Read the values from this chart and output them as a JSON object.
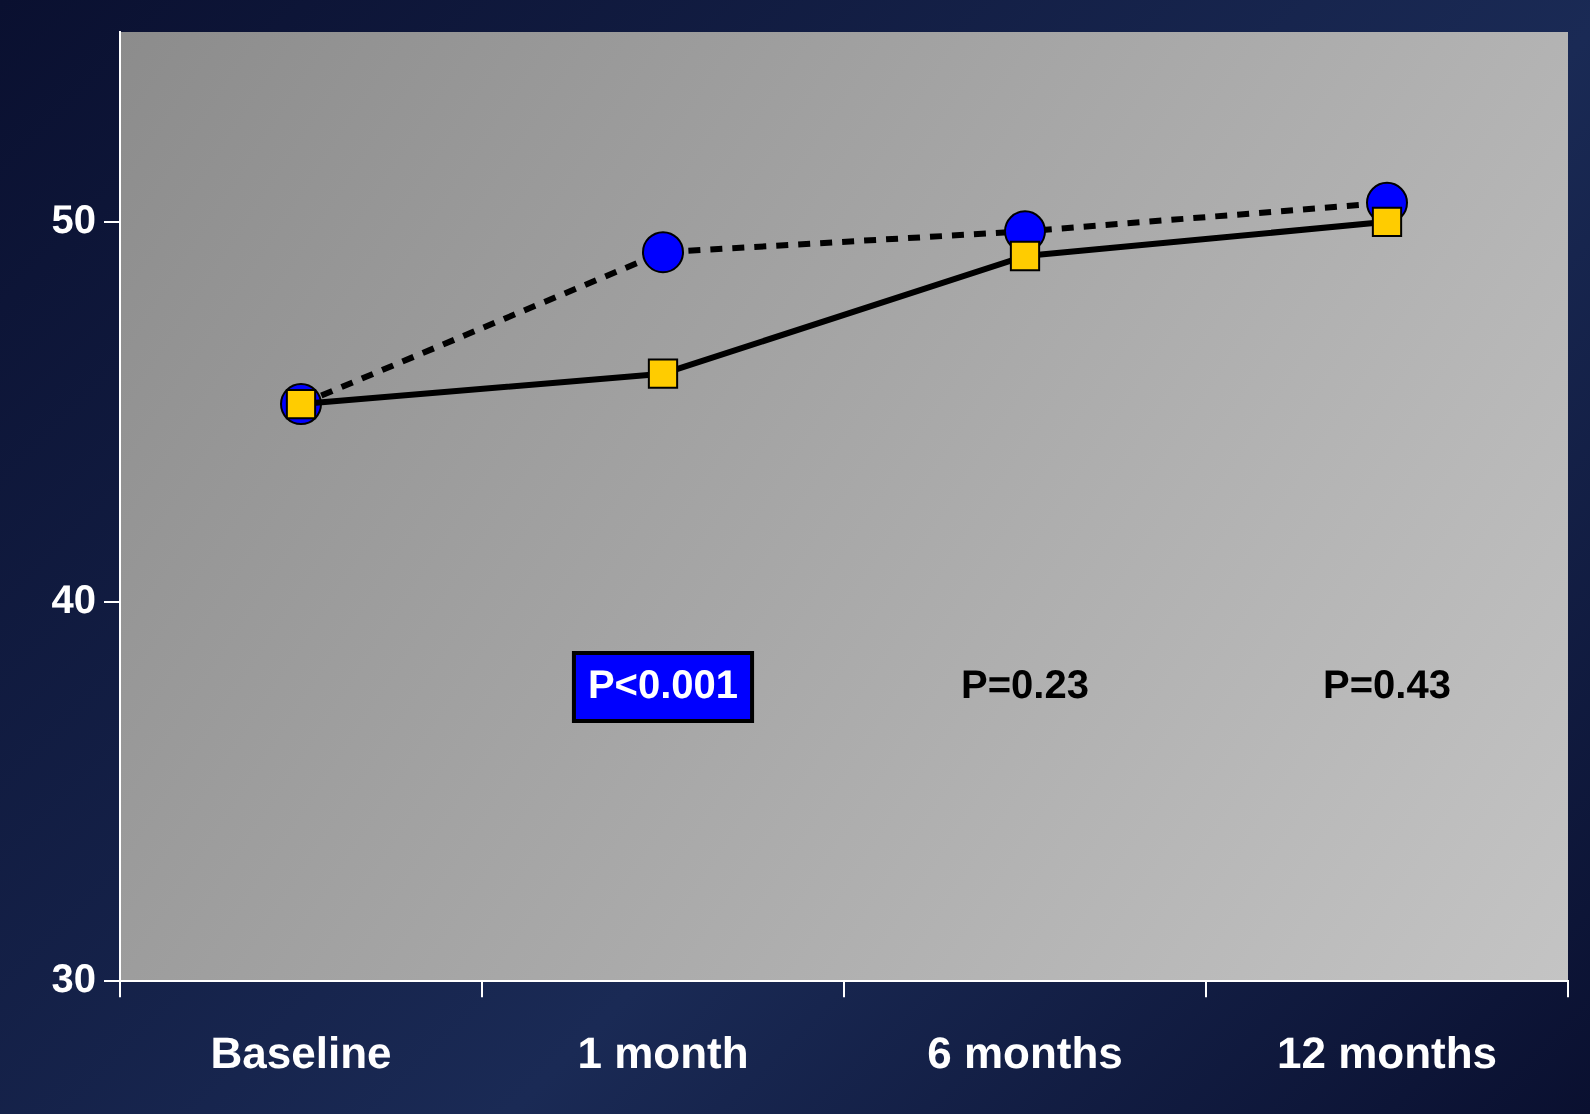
{
  "chart_data": {
    "type": "line",
    "categories": [
      "Baseline",
      "1 month",
      "6 months",
      "12 months"
    ],
    "series": [
      {
        "color": "#0000ff",
        "values": [
          45.2,
          49.2,
          49.75,
          50.5
        ],
        "marker": "circle",
        "line_style": "dashed"
      },
      {
        "color": "#ffcc00",
        "values": [
          45.2,
          46.0,
          49.1,
          50.0
        ],
        "marker": "square",
        "line_style": "solid"
      }
    ],
    "ylim": [
      30,
      55
    ],
    "yticks": [
      30,
      40,
      50
    ],
    "grid": false,
    "legend": false,
    "annotations": [
      "P<0.001",
      "P=0.23",
      "P=0.43"
    ]
  }
}
